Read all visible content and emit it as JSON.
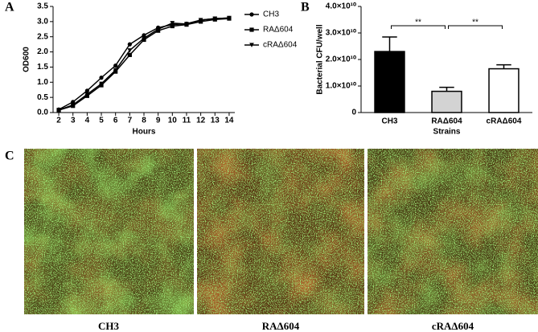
{
  "panel_labels": [
    "A",
    "B",
    "C"
  ],
  "chart_data": [
    {
      "type": "line",
      "xlabel": "Hours",
      "ylabel": "OD600",
      "x": [
        2,
        3,
        4,
        5,
        6,
        7,
        8,
        9,
        10,
        11,
        12,
        13,
        14
      ],
      "series": [
        {
          "name": "CH3",
          "color": "#000000",
          "marker": "circle",
          "values": [
            0.1,
            0.35,
            0.72,
            1.15,
            1.55,
            2.25,
            2.55,
            2.8,
            2.9,
            2.93,
            3.05,
            3.1,
            3.12
          ]
        },
        {
          "name": "RAΔ604",
          "color": "#000000",
          "marker": "square",
          "values": [
            0.08,
            0.22,
            0.55,
            0.9,
            1.35,
            1.9,
            2.4,
            2.7,
            2.85,
            2.9,
            3.0,
            3.07,
            3.1
          ]
        },
        {
          "name": "cRAΔ604",
          "color": "#000000",
          "marker": "triangle-down",
          "values": [
            0.08,
            0.25,
            0.6,
            0.95,
            1.4,
            2.05,
            2.45,
            2.75,
            2.95,
            2.92,
            3.05,
            3.1,
            3.12
          ]
        }
      ],
      "xlim": [
        1.6,
        14.4
      ],
      "xticks": [
        2,
        3,
        4,
        5,
        6,
        7,
        8,
        9,
        10,
        11,
        12,
        13,
        14
      ],
      "ylim": [
        0,
        3.5
      ],
      "yticks": [
        {
          "value": 0,
          "label": "0.0"
        },
        0.5,
        {
          "value": 1,
          "label": "1.0"
        },
        1.5,
        {
          "value": 2,
          "label": "2.0"
        },
        2.5,
        {
          "value": 3,
          "label": "3.0"
        },
        3.5
      ],
      "legend": "right"
    },
    {
      "type": "bar",
      "xlabel": "Strains",
      "ylabel": "Bacterial CFU/well",
      "categories": [
        "CH3",
        "RAΔ604",
        "cRAΔ604"
      ],
      "values": [
        23000000000,
        8000000000,
        16500000000
      ],
      "errors": [
        5500000000,
        1500000000,
        1500000000
      ],
      "colors": [
        "#000000",
        "#d3d3d3",
        "#ffffff"
      ],
      "ylim": [
        0,
        40000000000
      ],
      "yticks": [
        0,
        {
          "value": 10000000000,
          "label": "1.0×10¹⁰"
        },
        {
          "value": 20000000000,
          "label": "2.0×10¹⁰"
        },
        {
          "value": 30000000000,
          "label": "3.0×10¹⁰"
        },
        {
          "value": 40000000000,
          "label": "4.0×10¹⁰"
        }
      ],
      "annotations": [
        "**",
        "**"
      ]
    }
  ],
  "micrographs": [
    "CH3",
    "RAΔ604",
    "cRAΔ604"
  ]
}
